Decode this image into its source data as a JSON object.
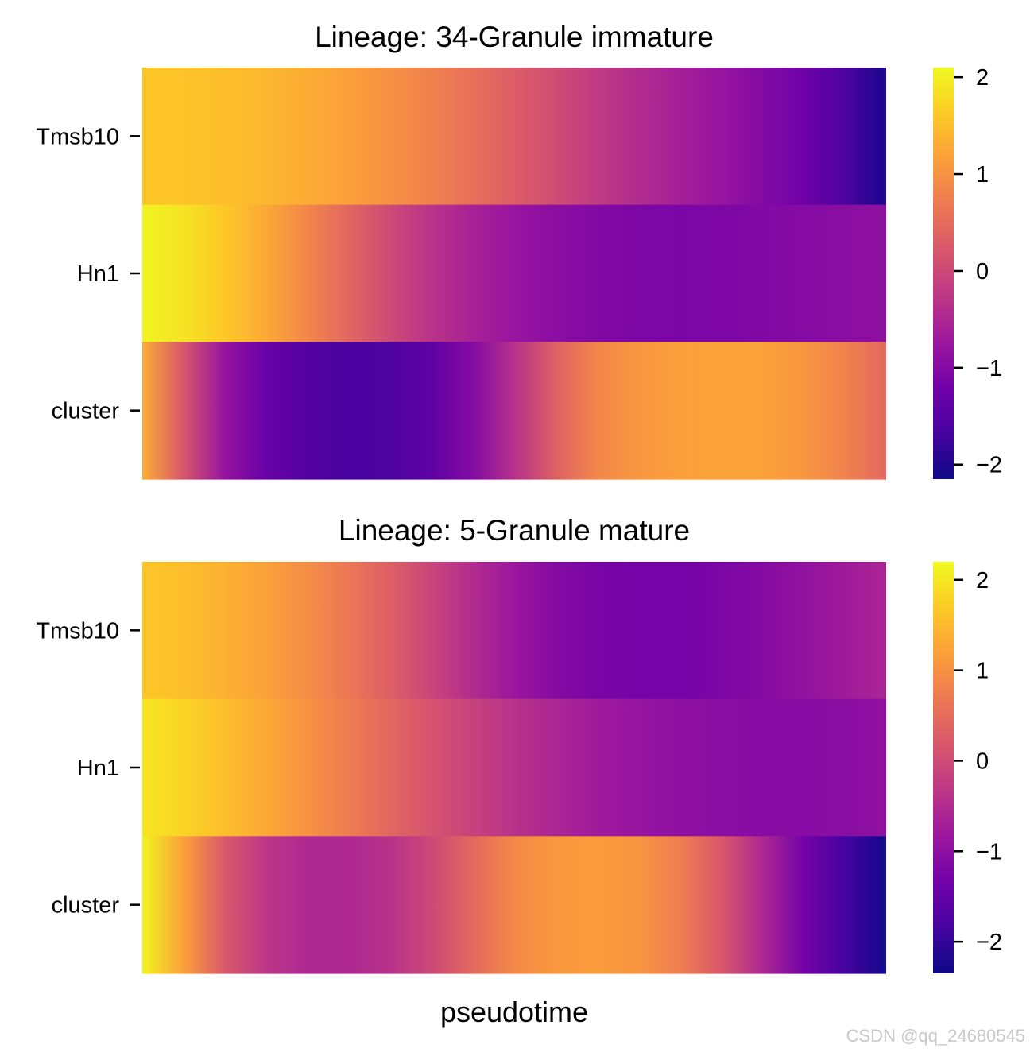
{
  "colormap": {
    "name": "plasma",
    "stops": [
      "#0d0887",
      "#46039f",
      "#7201a8",
      "#9c179e",
      "#bd3786",
      "#d8576b",
      "#ed7953",
      "#fb9f3a",
      "#fdca26",
      "#f0f921"
    ]
  },
  "watermark": "CSDN @qq_24680545",
  "chart_data": [
    {
      "type": "heatmap",
      "title": "Lineage: 34-Granule immature",
      "xlabel": "",
      "rows": [
        "Tmsb10",
        "Hn1",
        "cluster"
      ],
      "vmin": -2.15,
      "vmax": 2.1,
      "colorbar_ticks": [
        2,
        1,
        0,
        -1,
        -2
      ],
      "colorbar_tick_labels": [
        "2",
        "1",
        "0",
        "−1",
        "−2"
      ],
      "series": [
        {
          "name": "Tmsb10",
          "values": [
            1.58,
            1.55,
            1.5,
            1.42,
            1.3,
            1.15,
            0.98,
            0.78,
            0.55,
            0.3,
            0.05,
            -0.2,
            -0.42,
            -0.62,
            -0.8,
            -1.0,
            -1.25,
            -1.6,
            -2.05
          ]
        },
        {
          "name": "Hn1",
          "values": [
            2.05,
            1.88,
            1.6,
            1.25,
            0.85,
            0.42,
            0.02,
            -0.32,
            -0.58,
            -0.78,
            -0.92,
            -1.02,
            -1.08,
            -1.1,
            -1.08,
            -1.03,
            -0.98,
            -0.93,
            -0.88
          ]
        },
        {
          "name": "cluster",
          "values": [
            1.3,
            0.2,
            -0.8,
            -1.3,
            -1.55,
            -1.65,
            -1.6,
            -1.4,
            -1.0,
            -0.35,
            0.35,
            0.85,
            1.05,
            1.15,
            1.2,
            1.18,
            1.05,
            0.8,
            0.45
          ]
        }
      ]
    },
    {
      "type": "heatmap",
      "title": "Lineage: 5-Granule mature",
      "xlabel": "pseudotime",
      "rows": [
        "Tmsb10",
        "Hn1",
        "cluster"
      ],
      "vmin": -2.35,
      "vmax": 2.2,
      "colorbar_ticks": [
        2,
        1,
        0,
        -1,
        -2
      ],
      "colorbar_tick_labels": [
        "2",
        "1",
        "0",
        "−1",
        "−2"
      ],
      "series": [
        {
          "name": "Tmsb10",
          "values": [
            1.65,
            1.55,
            1.4,
            1.2,
            0.95,
            0.65,
            0.3,
            -0.1,
            -0.5,
            -0.85,
            -1.1,
            -1.25,
            -1.3,
            -1.3,
            -1.22,
            -1.1,
            -0.95,
            -0.78,
            -0.6
          ]
        },
        {
          "name": "Hn1",
          "values": [
            2.0,
            1.8,
            1.55,
            1.3,
            1.02,
            0.72,
            0.42,
            0.12,
            -0.15,
            -0.4,
            -0.6,
            -0.78,
            -0.9,
            -1.0,
            -1.05,
            -1.08,
            -1.08,
            -1.05,
            -0.98
          ]
        },
        {
          "name": "cluster",
          "values": [
            2.15,
            1.2,
            0.2,
            -0.35,
            -0.55,
            -0.55,
            -0.4,
            -0.05,
            0.45,
            0.9,
            1.1,
            1.15,
            1.05,
            0.75,
            0.2,
            -0.55,
            -1.3,
            -1.85,
            -2.3
          ]
        }
      ]
    }
  ]
}
